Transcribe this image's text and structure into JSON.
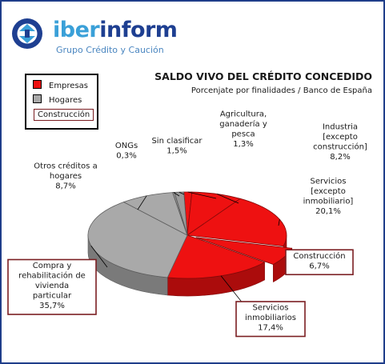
{
  "header": {
    "brand_name": "iberinform",
    "brand_sub": "Grupo Crédito y Caución",
    "brand_colors": {
      "primary": "#1e3f91",
      "accent": "#3aa0d8"
    }
  },
  "chart_data": {
    "type": "pie",
    "title": "SALDO VIVO DEL CRÉDITO CONCEDIDO",
    "subtitle": "Porcenjate por finalidades / Banco de España",
    "legend": {
      "placement": "top-left",
      "entries": [
        {
          "label": "Empresas",
          "color": "#ee1111"
        },
        {
          "label": "Hogares",
          "color": "#a9a9a9"
        },
        {
          "label": "Construcción",
          "boxed": true
        }
      ]
    },
    "slices": [
      {
        "lines": [
          "Agricultura,",
          "ganadería y",
          "pesca"
        ],
        "pct_label": "1,3%",
        "value": 1.3,
        "group": "Empresas"
      },
      {
        "lines": [
          "Industria",
          "[excepto",
          "construcción]"
        ],
        "pct_label": "8,2%",
        "value": 8.2,
        "group": "Empresas"
      },
      {
        "lines": [
          "Servicios",
          "[excepto",
          "inmobiliario]"
        ],
        "pct_label": "20,1%",
        "value": 20.1,
        "group": "Empresas"
      },
      {
        "lines": [
          "Construcción"
        ],
        "pct_label": "6,7%",
        "value": 6.7,
        "group": "Empresas",
        "boxed": true
      },
      {
        "lines": [
          "Servicios",
          "inmobiliarios"
        ],
        "pct_label": "17,4%",
        "value": 17.4,
        "group": "Empresas",
        "boxed": true
      },
      {
        "lines": [
          "Compra y",
          "rehabilitación de",
          "vivienda",
          "particular"
        ],
        "pct_label": "35,7%",
        "value": 35.7,
        "group": "Hogares",
        "boxed": true
      },
      {
        "lines": [
          "Otros créditos a",
          "hogares"
        ],
        "pct_label": "8,7%",
        "value": 8.7,
        "group": "Hogares"
      },
      {
        "lines": [
          "ONGs"
        ],
        "pct_label": "0,3%",
        "value": 0.3,
        "group": "Other"
      },
      {
        "lines": [
          "Sin clasificar"
        ],
        "pct_label": "1,5%",
        "value": 1.5,
        "group": "Other"
      }
    ],
    "group_colors": {
      "Empresas": "#ee1111",
      "Hogares": "#a9a9a9",
      "Other": "#9a9a9a"
    }
  }
}
